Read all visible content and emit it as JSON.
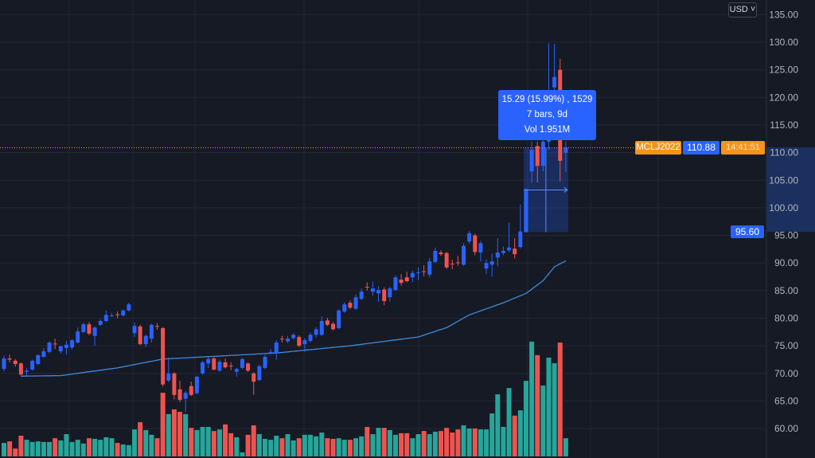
{
  "header": {
    "currency_button": "USD ˅"
  },
  "chart_data": {
    "type": "candlestick",
    "symbol": "MCLJ2022",
    "last_price": "110.88",
    "countdown": "14:41:51",
    "ylim": [
      57,
      136
    ],
    "y_ticks": [
      "135.00",
      "130.00",
      "125.00",
      "120.00",
      "115.00",
      "110.00",
      "105.00",
      "100.00",
      "95.00",
      "90.00",
      "85.00",
      "80.00",
      "75.00",
      "70.00",
      "65.00",
      "60.00"
    ],
    "up_color": "#2962ff",
    "down_color": "#ef5350",
    "vol_up_color": "#26a69a",
    "vol_down_color": "#ef5350",
    "ma_color": "#3d8bd9",
    "candles_ohlc": [
      [
        70.8,
        73.2,
        70.4,
        72.7
      ],
      [
        72.7,
        73.4,
        72.0,
        72.5
      ],
      [
        72.3,
        72.6,
        71.2,
        71.7
      ],
      [
        71.8,
        72.0,
        69.6,
        69.8
      ],
      [
        70.3,
        71.0,
        69.4,
        70.5
      ],
      [
        70.7,
        72.5,
        70.5,
        72.3
      ],
      [
        71.7,
        73.5,
        71.5,
        73.3
      ],
      [
        73.0,
        74.6,
        72.8,
        74.0
      ],
      [
        73.9,
        75.8,
        73.7,
        75.6
      ],
      [
        75.4,
        76.3,
        74.4,
        75.3
      ],
      [
        74.0,
        75.1,
        73.6,
        74.9
      ],
      [
        74.6,
        75.9,
        73.4,
        75.2
      ],
      [
        74.7,
        76.2,
        74.3,
        76.0
      ],
      [
        75.6,
        78.3,
        75.4,
        77.6
      ],
      [
        77.5,
        79.2,
        77.3,
        78.9
      ],
      [
        78.9,
        79.3,
        76.9,
        77.2
      ],
      [
        76.8,
        78.5,
        75.0,
        78.3
      ],
      [
        78.8,
        79.8,
        78.6,
        79.5
      ],
      [
        79.5,
        81.4,
        79.3,
        80.6
      ],
      [
        80.4,
        81.0,
        80.2,
        80.5
      ],
      [
        80.7,
        81.2,
        80.0,
        80.6
      ],
      [
        80.5,
        81.6,
        80.3,
        81.4
      ],
      [
        81.4,
        82.8,
        81.2,
        82.5
      ],
      [
        77.3,
        79.2,
        76.6,
        78.6
      ],
      [
        78.5,
        78.8,
        75.1,
        75.3
      ],
      [
        75.3,
        77.0,
        74.8,
        76.8
      ],
      [
        76.3,
        79.0,
        75.6,
        78.8
      ],
      [
        78.6,
        79.1,
        77.9,
        78.5
      ],
      [
        78.2,
        78.4,
        67.6,
        68.0
      ],
      [
        68.7,
        72.9,
        68.4,
        70.0
      ],
      [
        70.0,
        70.2,
        65.3,
        66.1
      ],
      [
        67.1,
        68.7,
        64.8,
        65.2
      ],
      [
        65.4,
        66.8,
        63.0,
        66.5
      ],
      [
        67.7,
        68.5,
        65.9,
        66.1
      ],
      [
        66.4,
        69.6,
        66.2,
        69.4
      ],
      [
        70.0,
        72.3,
        69.7,
        72.0
      ],
      [
        71.8,
        73.0,
        71.0,
        72.6
      ],
      [
        72.7,
        73.0,
        70.5,
        70.7
      ],
      [
        70.5,
        72.5,
        70.3,
        72.1
      ],
      [
        72.0,
        72.7,
        70.9,
        71.1
      ],
      [
        71.4,
        72.0,
        70.6,
        71.3
      ],
      [
        70.3,
        71.0,
        69.4,
        70.8
      ],
      [
        71.0,
        72.8,
        70.8,
        72.6
      ],
      [
        71.8,
        72.0,
        70.3,
        70.5
      ],
      [
        70.0,
        70.2,
        66.1,
        68.5
      ],
      [
        68.8,
        71.6,
        68.6,
        71.3
      ],
      [
        71.0,
        73.4,
        70.8,
        73.0
      ],
      [
        73.6,
        74.4,
        73.4,
        73.9
      ],
      [
        73.7,
        76.0,
        72.5,
        75.6
      ],
      [
        76.3,
        76.8,
        75.6,
        76.2
      ],
      [
        75.8,
        76.8,
        75.5,
        76.3
      ],
      [
        76.4,
        77.3,
        76.1,
        77.0
      ],
      [
        76.6,
        76.9,
        74.8,
        75.0
      ],
      [
        75.3,
        76.4,
        73.9,
        76.0
      ],
      [
        75.9,
        77.4,
        75.6,
        77.0
      ],
      [
        77.0,
        78.4,
        76.5,
        78.0
      ],
      [
        77.0,
        80.3,
        76.8,
        79.5
      ],
      [
        79.6,
        80.1,
        78.6,
        78.8
      ],
      [
        79.0,
        79.3,
        77.8,
        78.0
      ],
      [
        78.2,
        81.6,
        78.0,
        81.4
      ],
      [
        81.2,
        82.9,
        81.0,
        82.5
      ],
      [
        82.8,
        83.2,
        81.6,
        81.9
      ],
      [
        81.7,
        84.3,
        81.5,
        83.8
      ],
      [
        83.5,
        85.4,
        83.3,
        84.8
      ],
      [
        85.7,
        86.5,
        85.0,
        85.6
      ],
      [
        84.8,
        86.6,
        84.1,
        85.4
      ],
      [
        84.5,
        85.8,
        83.0,
        85.1
      ],
      [
        85.2,
        85.6,
        82.4,
        83.1
      ],
      [
        83.8,
        85.7,
        83.0,
        85.4
      ],
      [
        85.1,
        87.8,
        85.0,
        87.4
      ],
      [
        87.0,
        88.0,
        85.9,
        86.4
      ],
      [
        87.4,
        88.4,
        86.5,
        86.7
      ],
      [
        87.4,
        88.6,
        86.6,
        88.2
      ],
      [
        88.2,
        89.2,
        86.9,
        88.3
      ],
      [
        88.5,
        89.6,
        87.6,
        88.4
      ],
      [
        87.9,
        90.9,
        87.4,
        90.3
      ],
      [
        90.2,
        92.8,
        90.0,
        92.2
      ],
      [
        91.9,
        92.3,
        91.3,
        91.6
      ],
      [
        91.8,
        92.0,
        88.9,
        89.2
      ],
      [
        89.9,
        90.6,
        88.9,
        89.8
      ],
      [
        90.1,
        91.3,
        89.5,
        90.0
      ],
      [
        89.7,
        93.6,
        89.5,
        93.1
      ],
      [
        93.9,
        95.8,
        93.5,
        95.4
      ],
      [
        95.0,
        95.3,
        91.4,
        92.0
      ],
      [
        91.9,
        94.0,
        90.3,
        93.6
      ],
      [
        89.0,
        90.6,
        88.0,
        90.0
      ],
      [
        89.7,
        91.7,
        87.5,
        90.3
      ],
      [
        91.0,
        94.5,
        89.4,
        91.9
      ],
      [
        91.8,
        93.0,
        91.4,
        92.2
      ],
      [
        92.3,
        97.3,
        92.0,
        92.8
      ],
      [
        92.6,
        94.5,
        90.8,
        91.6
      ],
      [
        92.9,
        100.6,
        92.6,
        95.7
      ],
      [
        95.6,
        103.5,
        95.5,
        103.4
      ],
      [
        106.6,
        112.0,
        104.5,
        110.5
      ],
      [
        111.2,
        112.0,
        104.6,
        107.6
      ],
      [
        107.6,
        113.3,
        106.6,
        112.0
      ],
      [
        112.0,
        129.8,
        110.5,
        121.0
      ],
      [
        121.8,
        129.7,
        120.5,
        123.7
      ],
      [
        125.0,
        127.0,
        104.8,
        108.5
      ],
      [
        110.0,
        112.0,
        106.5,
        110.88
      ]
    ],
    "volume_k": [
      43,
      48,
      25,
      66,
      53,
      46,
      48,
      46,
      46,
      58,
      51,
      71,
      46,
      53,
      41,
      58,
      56,
      53,
      61,
      58,
      43,
      38,
      36,
      86,
      109,
      84,
      69,
      58,
      203,
      135,
      150,
      142,
      135,
      91,
      84,
      94,
      94,
      81,
      86,
      102,
      74,
      61,
      13,
      69,
      99,
      71,
      56,
      53,
      66,
      58,
      71,
      51,
      58,
      69,
      69,
      64,
      76,
      58,
      56,
      58,
      53,
      53,
      58,
      64,
      94,
      71,
      91,
      91,
      84,
      69,
      74,
      74,
      58,
      71,
      81,
      71,
      79,
      81,
      91,
      76,
      86,
      99,
      89,
      89,
      86,
      86,
      137,
      198,
      94,
      218,
      130,
      147,
      241,
      366,
      323,
      226,
      315,
      297,
      363,
      58
    ],
    "moving_average_points": [
      [
        3,
        69.5
      ],
      [
        10,
        69.6
      ],
      [
        20,
        71.0
      ],
      [
        28,
        72.6
      ],
      [
        48,
        73.7
      ],
      [
        61,
        75.0
      ],
      [
        73,
        76.6
      ],
      [
        78,
        78.3
      ],
      [
        82,
        80.6
      ],
      [
        88,
        82.8
      ],
      [
        92,
        84.5
      ],
      [
        95,
        86.8
      ],
      [
        97,
        89.3
      ],
      [
        99,
        90.4
      ]
    ],
    "measure": {
      "start_price": "95.60",
      "end_price": 110.88,
      "start_index": 92,
      "end_index": 99,
      "line1": "15.29 (15.99%) , 1529",
      "line2": "7 bars, 9d",
      "line3": "Vol 1.951M"
    }
  }
}
